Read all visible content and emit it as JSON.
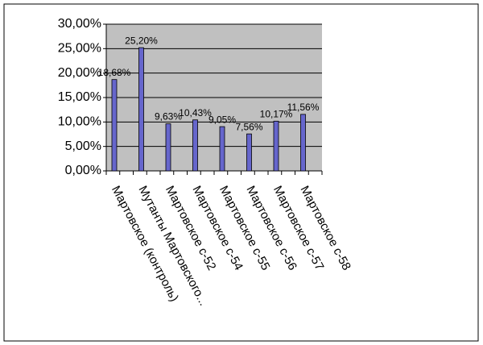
{
  "chart_data": {
    "type": "bar",
    "categories": [
      "Мартовское (контроль)",
      "Мутанты Мартовского...",
      "Мартовское с-52",
      "Мартовское с-54",
      "Мартовское с-55",
      "Мартовское с-56",
      "Мартовское с-57",
      "Мартовское с-58"
    ],
    "values": [
      18.68,
      25.2,
      9.63,
      10.43,
      9.05,
      7.56,
      10.17,
      11.56
    ],
    "value_labels": [
      "18,68%",
      "25,20%",
      "9,63%",
      "10,43%",
      "9,05%",
      "7,56%",
      "10,17%",
      "11,56%"
    ],
    "color": "#6666cc",
    "ylim": [
      0,
      30
    ],
    "yticks": [
      {
        "value": 0,
        "label": "0,00%"
      },
      {
        "value": 5,
        "label": "5,00%"
      },
      {
        "value": 10,
        "label": "10,00%"
      },
      {
        "value": 15,
        "label": "15,00%"
      },
      {
        "value": 20,
        "label": "20,00%"
      },
      {
        "value": 25,
        "label": "25,00%"
      },
      {
        "value": 30,
        "label": "30,00%"
      }
    ],
    "grid": true
  }
}
